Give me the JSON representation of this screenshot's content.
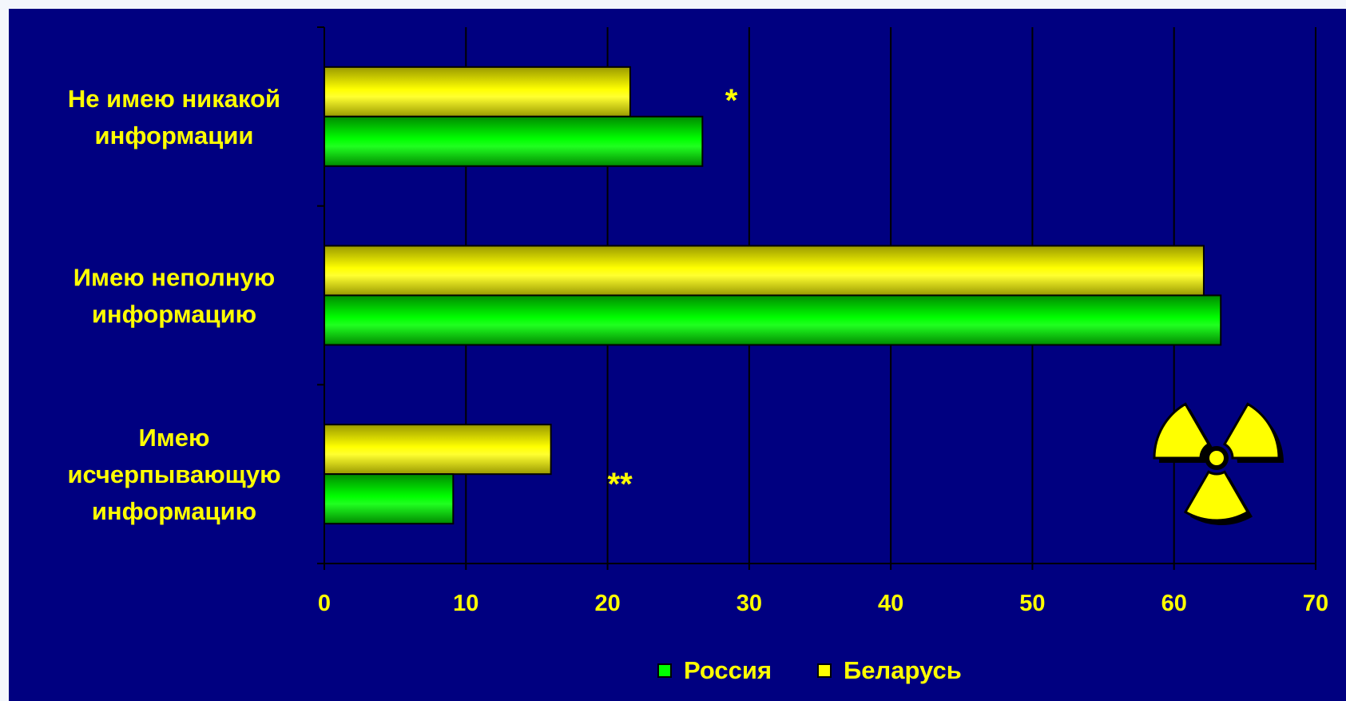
{
  "chart_data": {
    "type": "bar",
    "orientation": "horizontal",
    "categories": [
      [
        "Не имею никакой",
        "информации"
      ],
      [
        "Имею неполную",
        "информацию"
      ],
      [
        "Имею",
        "исчерпывающую",
        "информацию"
      ]
    ],
    "series": [
      {
        "name": "Беларусь",
        "color": "#ffff00",
        "values": [
          21.6,
          62.1,
          16.0
        ]
      },
      {
        "name": "Россия",
        "color": "#00ff00",
        "values": [
          26.7,
          63.3,
          9.1
        ]
      }
    ],
    "xlim": [
      0,
      70
    ],
    "xticks": [
      "0",
      "10",
      "20",
      "30",
      "40",
      "50",
      "60",
      "70"
    ],
    "grid": true,
    "legend_position": "bottom",
    "legend_order": [
      "Россия",
      "Беларусь"
    ],
    "annotations": [
      {
        "text": "*",
        "category_index": 0
      },
      {
        "text": "**",
        "category_index": 2
      }
    ],
    "background_color": "#000080",
    "text_color": "#ffff00",
    "decoration_icon": "radiation-icon"
  }
}
